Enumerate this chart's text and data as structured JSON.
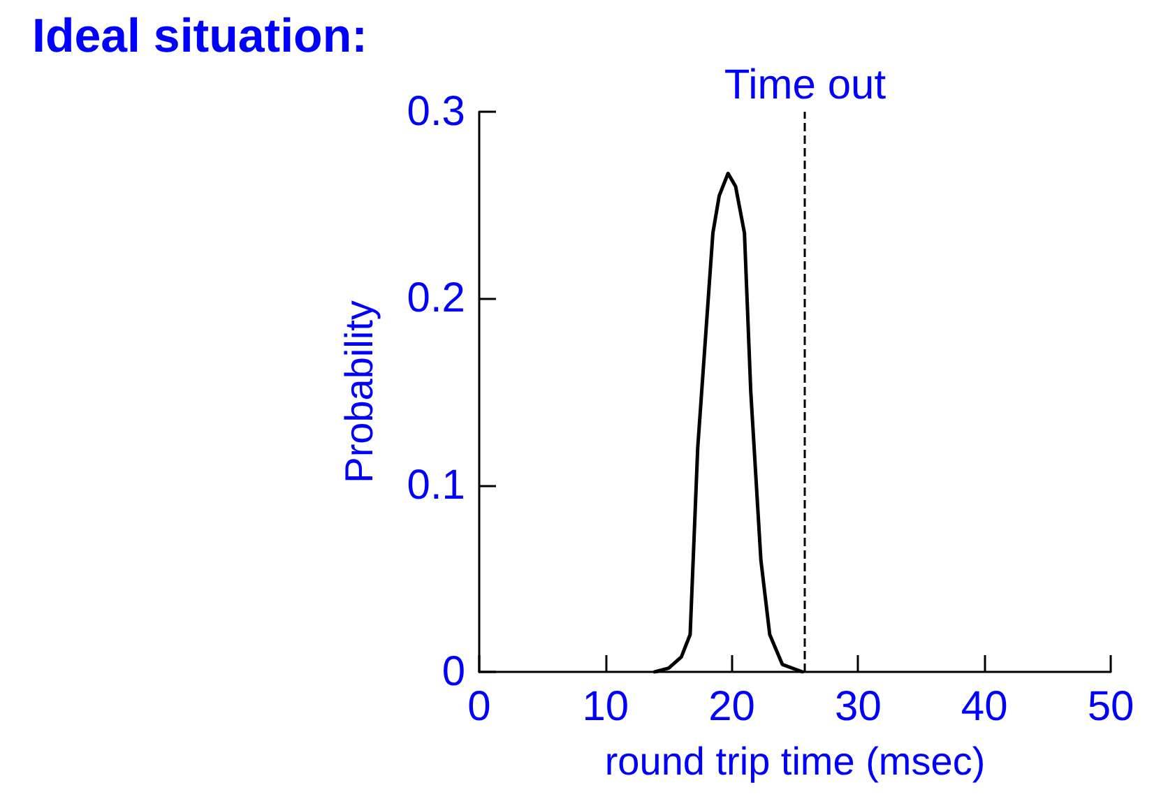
{
  "chart_data": {
    "type": "line",
    "title": "Ideal situation:",
    "xlabel": "round trip time (msec)",
    "ylabel": "Probability",
    "series": [
      {
        "color": "#000000",
        "x": [
          13.9,
          15,
          16,
          16.7,
          17.3,
          18.5,
          19,
          19.7,
          20.3,
          21,
          21.5,
          22.3,
          23,
          24,
          25.6
        ],
        "values": [
          0,
          0.002,
          0.008,
          0.02,
          0.12,
          0.235,
          0.255,
          0.267,
          0.26,
          0.235,
          0.15,
          0.06,
          0.02,
          0.004,
          0
        ]
      }
    ],
    "xlim": [
      0,
      50
    ],
    "xticks": [
      0,
      10,
      20,
      30,
      40,
      50
    ],
    "ylim": [
      0,
      0.3
    ],
    "yticks": [
      0,
      0.1,
      0.2,
      0.3
    ],
    "ref_lines": [
      {
        "axis": "x",
        "value": 25.8,
        "label": "Time out",
        "color": "#000000",
        "line_style": "dashed"
      }
    ],
    "grid": false,
    "marker": "none",
    "line_style": "solid"
  }
}
